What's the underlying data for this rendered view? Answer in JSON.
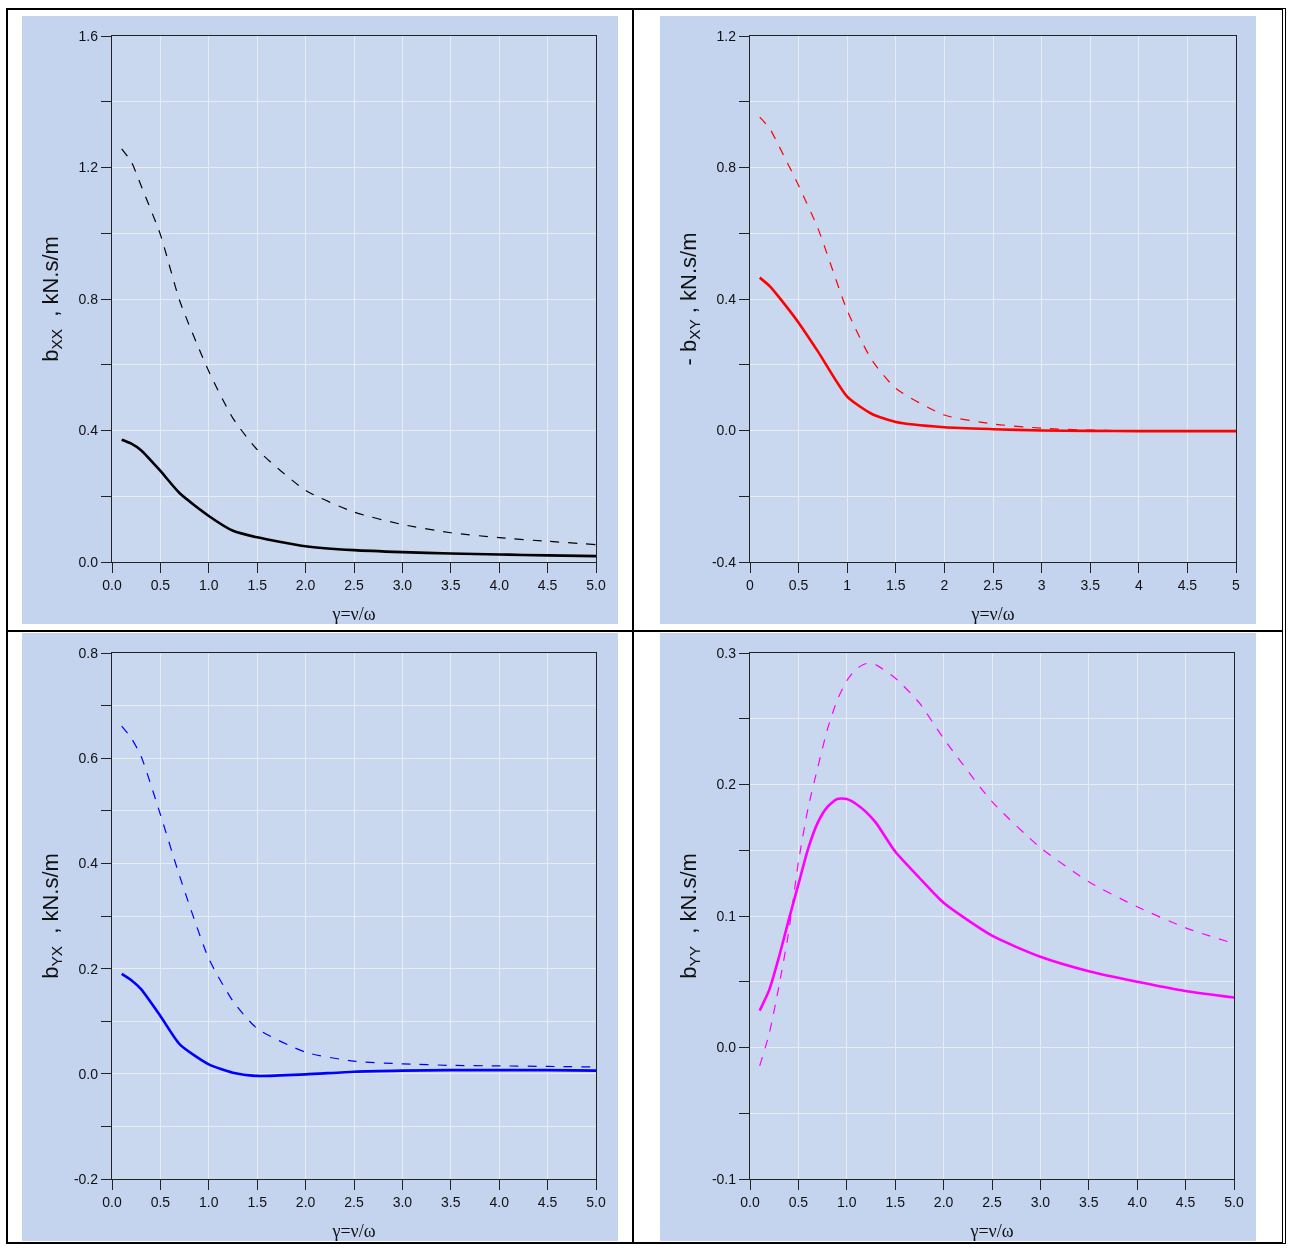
{
  "chart_data": [
    {
      "type": "line",
      "xlabel": "γ=ν/ω",
      "ylabel": "b$_{XX}$  , kN.s/m",
      "xlim": [
        0,
        5
      ],
      "ylim": [
        0,
        1.6
      ],
      "xticks": [
        {
          "value": 0,
          "label": "0.0"
        },
        0.5,
        {
          "value": 1,
          "label": "1.0"
        },
        1.5,
        {
          "value": 2,
          "label": "2.0"
        },
        2.5,
        {
          "value": 3,
          "label": "3.0"
        },
        3.5,
        {
          "value": 4,
          "label": "4.0"
        },
        4.5,
        {
          "value": 5,
          "label": "5.0"
        }
      ],
      "yticks": [
        {
          "value": 0,
          "label": "0.0"
        },
        {
          "value": 0.2,
          "label": null
        },
        0.4,
        {
          "value": 0.6,
          "label": null
        },
        0.8,
        {
          "value": 1,
          "label": null
        },
        1.2,
        {
          "value": 1.4,
          "label": null
        },
        1.6
      ],
      "grid": true,
      "x": [
        0.1,
        0.2,
        0.3,
        0.5,
        0.7,
        1.0,
        1.25,
        1.5,
        2,
        2.5,
        3,
        3.5,
        4,
        4.5,
        5
      ],
      "series": [
        {
          "color": "#000000",
          "line_style": "solid",
          "values": [
            0.372,
            0.36,
            0.34,
            0.277,
            0.209,
            0.14,
            0.095,
            0.075,
            0.048,
            0.036,
            0.03,
            0.026,
            0.023,
            0.02,
            0.018
          ]
        },
        {
          "color": "#000000",
          "line_style": "dashed",
          "values": [
            1.257,
            1.217,
            1.145,
            0.996,
            0.794,
            0.58,
            0.437,
            0.342,
            0.218,
            0.152,
            0.114,
            0.089,
            0.074,
            0.063,
            0.053
          ]
        }
      ]
    },
    {
      "type": "line",
      "xlabel": "γ=ν/ω",
      "ylabel": "- b$_{XY}$ , kN.s/m",
      "xlim": [
        0,
        5
      ],
      "ylim": [
        -0.4,
        1.2
      ],
      "xticks": [
        0,
        0.5,
        1,
        1.5,
        2,
        2.5,
        3,
        3.5,
        4,
        4.5,
        5
      ],
      "yticks": [
        -0.4,
        {
          "value": -0.2,
          "label": null
        },
        {
          "value": 0,
          "label": "0.0"
        },
        {
          "value": 0.2,
          "label": null
        },
        0.4,
        {
          "value": 0.6,
          "label": null
        },
        0.8,
        {
          "value": 1,
          "label": null
        },
        1.2
      ],
      "grid": true,
      "x": [
        0.1,
        0.2,
        0.3,
        0.5,
        0.7,
        1.0,
        1.25,
        1.5,
        2,
        2.5,
        3,
        3.5,
        4,
        4.5,
        5
      ],
      "series": [
        {
          "color": "#ff0000",
          "line_style": "solid",
          "values": [
            0.465,
            0.44,
            0.405,
            0.328,
            0.24,
            0.103,
            0.051,
            0.026,
            0.01,
            0.004,
            0,
            -0.001,
            -0.002,
            -0.002,
            -0.002
          ]
        },
        {
          "color": "#ff0000",
          "line_style": "dashed",
          "values": [
            0.953,
            0.92,
            0.864,
            0.745,
            0.614,
            0.365,
            0.216,
            0.128,
            0.047,
            0.02,
            0.007,
            0.001,
            -0.001,
            -0.002,
            -0.002
          ]
        }
      ]
    },
    {
      "type": "line",
      "xlabel": "γ=ν/ω",
      "ylabel": "b$_{YX}$  , kN.s/m",
      "xlim": [
        0,
        5
      ],
      "ylim": [
        -0.2,
        0.8
      ],
      "xticks": [
        {
          "value": 0,
          "label": "0.0"
        },
        0.5,
        {
          "value": 1,
          "label": "1.0"
        },
        1.5,
        {
          "value": 2,
          "label": "2.0"
        },
        2.5,
        {
          "value": 3,
          "label": "3.0"
        },
        3.5,
        {
          "value": 4,
          "label": "4.0"
        },
        4.5,
        {
          "value": 5,
          "label": "5.0"
        }
      ],
      "yticks": [
        -0.2,
        {
          "value": -0.1,
          "label": null
        },
        {
          "value": 0,
          "label": "0.0"
        },
        {
          "value": 0.1,
          "label": null
        },
        0.2,
        {
          "value": 0.3,
          "label": null
        },
        0.4,
        {
          "value": 0.5,
          "label": null
        },
        0.6,
        {
          "value": 0.7,
          "label": null
        },
        0.8
      ],
      "grid": true,
      "x": [
        0.1,
        0.2,
        0.3,
        0.5,
        0.7,
        1.0,
        1.25,
        1.5,
        2,
        2.5,
        3,
        3.5,
        4,
        4.5,
        5
      ],
      "series": [
        {
          "color": "#0000ff",
          "line_style": "solid",
          "values": [
            0.19,
            0.178,
            0.161,
            0.11,
            0.056,
            0.018,
            0.002,
            -0.004,
            -0.001,
            0.004,
            0.006,
            0.007,
            0.007,
            0.007,
            0.006
          ]
        },
        {
          "color": "#0000ff",
          "line_style": "dashed",
          "values": [
            0.661,
            0.638,
            0.604,
            0.493,
            0.375,
            0.219,
            0.138,
            0.086,
            0.041,
            0.024,
            0.019,
            0.016,
            0.015,
            0.014,
            0.013
          ]
        }
      ]
    },
    {
      "type": "line",
      "xlabel": "γ=ν/ω",
      "ylabel": "b$_{YY}$  , kN.s/m",
      "xlim": [
        0,
        5
      ],
      "ylim": [
        -0.1,
        0.3
      ],
      "xticks": [
        {
          "value": 0,
          "label": "0.0"
        },
        0.5,
        {
          "value": 1,
          "label": "1.0"
        },
        1.5,
        {
          "value": 2,
          "label": "2.0"
        },
        2.5,
        {
          "value": 3,
          "label": "3.0"
        },
        3.5,
        {
          "value": 4,
          "label": "4.0"
        },
        4.5,
        {
          "value": 5,
          "label": "5.0"
        }
      ],
      "yticks": [
        -0.1,
        {
          "value": -0.05,
          "label": null
        },
        {
          "value": 0,
          "label": "0.0"
        },
        {
          "value": 0.05,
          "label": null
        },
        0.1,
        {
          "value": 0.15,
          "label": null
        },
        0.2,
        {
          "value": 0.25,
          "label": null
        },
        0.3
      ],
      "grid": true,
      "x": [
        0.1,
        0.2,
        0.3,
        0.4,
        0.5,
        0.6,
        0.7,
        0.8,
        0.9,
        1.0,
        1.1,
        1.2,
        1.3,
        1.5,
        1.75,
        2,
        2.5,
        3,
        3.5,
        4,
        4.5,
        5
      ],
      "series": [
        {
          "color": "#ff00ff",
          "line_style": "solid",
          "values": [
            0.028,
            0.044,
            0.069,
            0.097,
            0.124,
            0.151,
            0.171,
            0.183,
            0.189,
            0.189,
            0.185,
            0.179,
            0.171,
            0.149,
            0.129,
            0.11,
            0.085,
            0.069,
            0.058,
            0.05,
            0.043,
            0.038
          ]
        },
        {
          "color": "#ff00ff",
          "line_style": "dashed",
          "values": [
            -0.014,
            0.011,
            0.047,
            0.088,
            0.141,
            0.182,
            0.213,
            0.242,
            0.264,
            0.279,
            0.288,
            0.292,
            0.291,
            0.281,
            0.262,
            0.235,
            0.187,
            0.152,
            0.126,
            0.107,
            0.091,
            0.079
          ]
        }
      ]
    }
  ]
}
